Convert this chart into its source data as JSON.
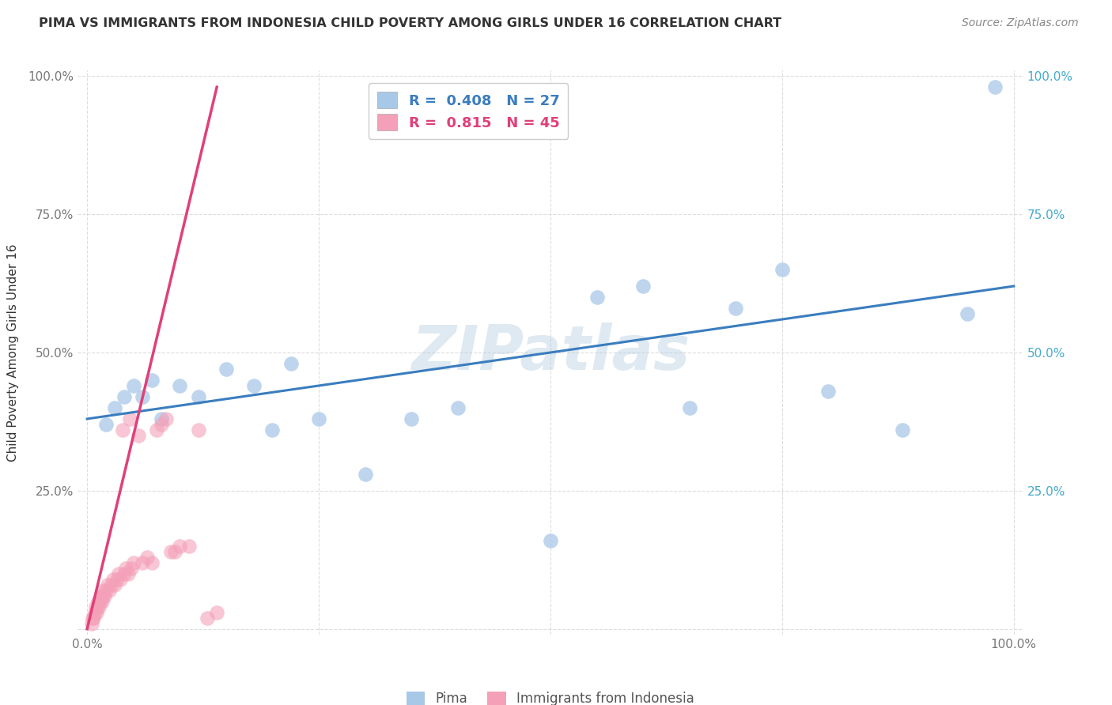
{
  "title": "PIMA VS IMMIGRANTS FROM INDONESIA CHILD POVERTY AMONG GIRLS UNDER 16 CORRELATION CHART",
  "source": "Source: ZipAtlas.com",
  "ylabel": "Child Poverty Among Girls Under 16",
  "watermark": "ZIPatlas",
  "pima_R": 0.408,
  "pima_N": 27,
  "indonesia_R": 0.815,
  "indonesia_N": 45,
  "pima_color": "#a8c8e8",
  "indonesia_color": "#f4a0b8",
  "pima_line_color": "#3a7dbf",
  "indonesia_line_color": "#e0407a",
  "xlim": [
    -0.02,
    1.02
  ],
  "ylim": [
    -0.02,
    1.02
  ],
  "xtick_positions": [
    0.0,
    0.25,
    0.5,
    0.75,
    1.0
  ],
  "ytick_positions": [
    0.0,
    0.25,
    0.5,
    0.75,
    1.0
  ],
  "xticklabels_left": [
    "0.0%",
    "",
    "",
    "",
    ""
  ],
  "xticklabels_bottom": [
    "0.0%",
    "",
    "",
    "",
    "100.0%"
  ],
  "yticklabels_left": [
    "",
    "25.0%",
    "50.0%",
    "75.0%",
    "100.0%"
  ],
  "yticklabels_right": [
    "",
    "25.0%",
    "50.0%",
    "75.0%",
    "100.0%"
  ],
  "pima_x": [
    0.02,
    0.03,
    0.04,
    0.05,
    0.06,
    0.07,
    0.08,
    0.1,
    0.12,
    0.15,
    0.18,
    0.2,
    0.22,
    0.25,
    0.3,
    0.35,
    0.4,
    0.5,
    0.55,
    0.6,
    0.65,
    0.7,
    0.75,
    0.8,
    0.88,
    0.95,
    0.98
  ],
  "pima_y": [
    0.37,
    0.4,
    0.42,
    0.44,
    0.42,
    0.45,
    0.38,
    0.44,
    0.42,
    0.47,
    0.44,
    0.36,
    0.48,
    0.38,
    0.28,
    0.38,
    0.4,
    0.16,
    0.6,
    0.62,
    0.4,
    0.58,
    0.65,
    0.43,
    0.36,
    0.57,
    0.98
  ],
  "indonesia_x": [
    0.005,
    0.006,
    0.007,
    0.008,
    0.009,
    0.01,
    0.011,
    0.012,
    0.013,
    0.014,
    0.015,
    0.016,
    0.017,
    0.018,
    0.019,
    0.02,
    0.022,
    0.024,
    0.026,
    0.028,
    0.03,
    0.032,
    0.034,
    0.036,
    0.038,
    0.04,
    0.042,
    0.044,
    0.046,
    0.048,
    0.05,
    0.055,
    0.06,
    0.065,
    0.07,
    0.075,
    0.08,
    0.085,
    0.09,
    0.095,
    0.1,
    0.11,
    0.12,
    0.13,
    0.14
  ],
  "indonesia_y": [
    0.01,
    0.02,
    0.02,
    0.03,
    0.04,
    0.03,
    0.04,
    0.05,
    0.04,
    0.05,
    0.06,
    0.05,
    0.06,
    0.07,
    0.06,
    0.07,
    0.08,
    0.07,
    0.08,
    0.09,
    0.08,
    0.09,
    0.1,
    0.09,
    0.36,
    0.1,
    0.11,
    0.1,
    0.38,
    0.11,
    0.12,
    0.35,
    0.12,
    0.13,
    0.12,
    0.36,
    0.37,
    0.38,
    0.14,
    0.14,
    0.15,
    0.15,
    0.36,
    0.02,
    0.03
  ],
  "indonesia_line_x_start": 0.0,
  "indonesia_line_x_end": 0.15,
  "grid_color": "#dddddd",
  "tick_color": "#777777"
}
